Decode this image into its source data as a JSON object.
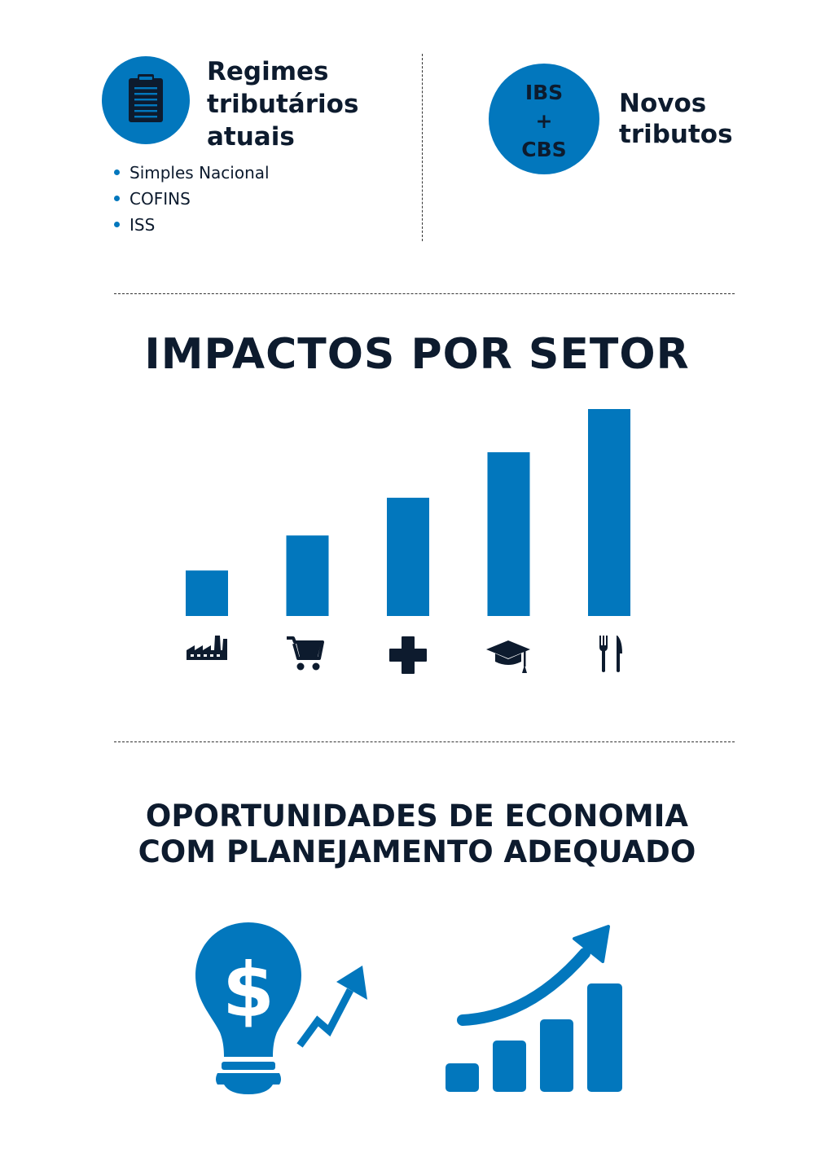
{
  "regimes": {
    "title_line1": "Regimes",
    "title_line2": "tributários",
    "title_line3": "atuais",
    "items": [
      "Simples Nacional",
      "COFINS",
      "ISS"
    ]
  },
  "novos": {
    "badge_line1": "IBS",
    "badge_line2": "+",
    "badge_line3": "CBS",
    "title_line1": "Novos",
    "title_line2": "tributos"
  },
  "impactos_title": "IMPACTOS POR SETOR",
  "chart_data": {
    "type": "bar",
    "categories": [
      "factory-icon",
      "shopping-cart-icon",
      "health-cross-icon",
      "graduation-cap-icon",
      "fork-knife-icon"
    ],
    "values": [
      1,
      1.77,
      2.6,
      3.6,
      4.55
    ],
    "ylim": [
      0,
      4.55
    ],
    "bar_color": "#0277bd",
    "grid": false,
    "legend": "none"
  },
  "oportunidades": {
    "line1": "OPORTUNIDADES DE ECONOMIA",
    "line2": "COM PLANEJAMENTO ADEQUADO"
  },
  "colors": {
    "accent": "#0277bd",
    "text": "#0d1b2e"
  },
  "icons": {
    "regimes": "clipboard-icon",
    "economy_left": "lightbulb-dollar-icon",
    "economy_right": "growth-chart-icon"
  }
}
